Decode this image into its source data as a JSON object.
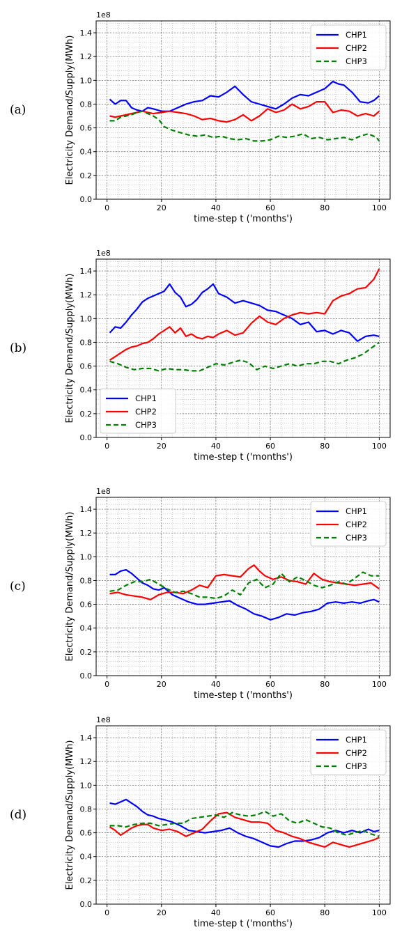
{
  "figure": {
    "panels": [
      {
        "label": "(a)",
        "chart_index": 0
      },
      {
        "label": "(b)",
        "chart_index": 1
      },
      {
        "label": "(c)",
        "chart_index": 2
      },
      {
        "label": "(d)",
        "chart_index": 3
      }
    ]
  },
  "colors": {
    "CHP1": "#0000ff",
    "CHP2": "#ff0000",
    "CHP3": "#008000"
  },
  "chart_data": [
    {
      "type": "line",
      "panel": "(a)",
      "xlabel": "time-step t ('months')",
      "ylabel": "Electricity Demand/Supply(MWh)",
      "offset_text": "1e8",
      "xlim": [
        -4,
        104
      ],
      "ylim": [
        0.0,
        1.5
      ],
      "xticks": [
        "0",
        "20",
        "40",
        "60",
        "80",
        "100"
      ],
      "yticks": [
        "0.0",
        "0.2",
        "0.4",
        "0.6",
        "0.8",
        "1.0",
        "1.2",
        "1.4"
      ],
      "grid": true,
      "minor_grid": true,
      "legend_position": "top-right",
      "series": [
        {
          "name": "CHP1",
          "style": "solid",
          "x": [
            1,
            3,
            5,
            7,
            9,
            11,
            13,
            15,
            17,
            20,
            23,
            26,
            29,
            32,
            35,
            38,
            41,
            44,
            47,
            50,
            53,
            56,
            59,
            62,
            65,
            68,
            71,
            74,
            77,
            80,
            83,
            85,
            87,
            90,
            93,
            96,
            98,
            100
          ],
          "y": [
            0.84,
            0.8,
            0.83,
            0.83,
            0.77,
            0.75,
            0.74,
            0.77,
            0.76,
            0.74,
            0.74,
            0.77,
            0.8,
            0.82,
            0.83,
            0.87,
            0.86,
            0.9,
            0.95,
            0.88,
            0.82,
            0.8,
            0.78,
            0.76,
            0.8,
            0.85,
            0.88,
            0.87,
            0.9,
            0.93,
            0.99,
            0.97,
            0.96,
            0.9,
            0.82,
            0.81,
            0.83,
            0.87
          ]
        },
        {
          "name": "CHP2",
          "style": "solid",
          "x": [
            1,
            3,
            5,
            7,
            9,
            11,
            13,
            15,
            17,
            20,
            23,
            26,
            29,
            32,
            35,
            38,
            41,
            44,
            47,
            50,
            53,
            56,
            59,
            62,
            65,
            68,
            71,
            74,
            77,
            80,
            83,
            86,
            89,
            92,
            95,
            98,
            100
          ],
          "y": [
            0.7,
            0.69,
            0.7,
            0.71,
            0.72,
            0.73,
            0.74,
            0.73,
            0.72,
            0.73,
            0.74,
            0.73,
            0.72,
            0.7,
            0.67,
            0.68,
            0.66,
            0.65,
            0.67,
            0.71,
            0.66,
            0.7,
            0.76,
            0.73,
            0.75,
            0.8,
            0.76,
            0.78,
            0.82,
            0.82,
            0.73,
            0.75,
            0.74,
            0.7,
            0.72,
            0.7,
            0.74
          ]
        },
        {
          "name": "CHP3",
          "style": "dashed",
          "x": [
            1,
            3,
            5,
            7,
            9,
            11,
            13,
            15,
            17,
            19,
            21,
            24,
            27,
            30,
            33,
            36,
            39,
            42,
            45,
            48,
            51,
            54,
            57,
            60,
            63,
            66,
            69,
            72,
            75,
            78,
            81,
            84,
            87,
            90,
            93,
            96,
            99,
            100
          ],
          "y": [
            0.66,
            0.66,
            0.69,
            0.7,
            0.71,
            0.73,
            0.74,
            0.72,
            0.7,
            0.67,
            0.61,
            0.58,
            0.56,
            0.54,
            0.53,
            0.54,
            0.52,
            0.53,
            0.51,
            0.5,
            0.51,
            0.49,
            0.49,
            0.5,
            0.53,
            0.52,
            0.53,
            0.55,
            0.51,
            0.52,
            0.5,
            0.51,
            0.52,
            0.5,
            0.53,
            0.55,
            0.52,
            0.49
          ]
        }
      ]
    },
    {
      "type": "line",
      "panel": "(b)",
      "xlabel": "time-step t ('months')",
      "ylabel": "Electricity Demand/Supply(MWh)",
      "offset_text": "1e8",
      "xlim": [
        -4,
        104
      ],
      "ylim": [
        0.0,
        1.5
      ],
      "xticks": [
        "0",
        "20",
        "40",
        "60",
        "80",
        "100"
      ],
      "yticks": [
        "0.0",
        "0.2",
        "0.4",
        "0.6",
        "0.8",
        "1.0",
        "1.2",
        "1.4"
      ],
      "grid": true,
      "minor_grid": true,
      "legend_position": "bottom-left",
      "series": [
        {
          "name": "CHP1",
          "style": "solid",
          "x": [
            1,
            3,
            5,
            7,
            9,
            11,
            13,
            15,
            17,
            19,
            21,
            23,
            25,
            27,
            29,
            31,
            33,
            35,
            37,
            39,
            41,
            44,
            47,
            50,
            53,
            56,
            59,
            62,
            65,
            68,
            71,
            74,
            77,
            80,
            83,
            86,
            89,
            92,
            95,
            98,
            100
          ],
          "y": [
            0.88,
            0.93,
            0.92,
            0.97,
            1.03,
            1.08,
            1.14,
            1.17,
            1.19,
            1.21,
            1.23,
            1.29,
            1.22,
            1.18,
            1.1,
            1.12,
            1.16,
            1.22,
            1.25,
            1.29,
            1.21,
            1.18,
            1.13,
            1.15,
            1.13,
            1.11,
            1.07,
            1.06,
            1.03,
            1.0,
            0.95,
            0.97,
            0.89,
            0.9,
            0.87,
            0.9,
            0.88,
            0.81,
            0.85,
            0.86,
            0.85
          ]
        },
        {
          "name": "CHP2",
          "style": "solid",
          "x": [
            1,
            3,
            5,
            7,
            9,
            11,
            13,
            15,
            17,
            19,
            21,
            23,
            25,
            27,
            29,
            31,
            33,
            35,
            37,
            39,
            41,
            44,
            47,
            50,
            53,
            56,
            59,
            62,
            65,
            68,
            71,
            74,
            77,
            80,
            83,
            86,
            89,
            92,
            95,
            98,
            100
          ],
          "y": [
            0.65,
            0.68,
            0.71,
            0.74,
            0.76,
            0.77,
            0.79,
            0.8,
            0.83,
            0.87,
            0.9,
            0.93,
            0.88,
            0.92,
            0.85,
            0.87,
            0.84,
            0.83,
            0.85,
            0.84,
            0.87,
            0.9,
            0.86,
            0.88,
            0.96,
            1.02,
            0.97,
            0.95,
            1.0,
            1.03,
            1.05,
            1.04,
            1.05,
            1.04,
            1.15,
            1.19,
            1.21,
            1.25,
            1.26,
            1.33,
            1.42
          ]
        },
        {
          "name": "CHP3",
          "style": "dashed",
          "x": [
            1,
            4,
            7,
            10,
            13,
            16,
            19,
            22,
            25,
            28,
            31,
            34,
            37,
            40,
            43,
            46,
            49,
            52,
            55,
            58,
            61,
            64,
            67,
            70,
            73,
            76,
            79,
            82,
            85,
            88,
            91,
            94,
            97,
            100
          ],
          "y": [
            0.64,
            0.62,
            0.59,
            0.57,
            0.58,
            0.58,
            0.56,
            0.58,
            0.57,
            0.57,
            0.56,
            0.56,
            0.59,
            0.62,
            0.61,
            0.63,
            0.65,
            0.63,
            0.57,
            0.6,
            0.58,
            0.6,
            0.62,
            0.6,
            0.62,
            0.62,
            0.64,
            0.64,
            0.62,
            0.65,
            0.67,
            0.7,
            0.75,
            0.8
          ]
        }
      ]
    },
    {
      "type": "line",
      "panel": "(c)",
      "xlabel": "time-step t ('months')",
      "ylabel": "Electricity Demand/Supply(MWh)",
      "offset_text": "1e8",
      "xlim": [
        -4,
        104
      ],
      "ylim": [
        0.0,
        1.5
      ],
      "xticks": [
        "0",
        "20",
        "40",
        "60",
        "80",
        "100"
      ],
      "yticks": [
        "0.0",
        "0.2",
        "0.4",
        "0.6",
        "0.8",
        "1.0",
        "1.2",
        "1.4"
      ],
      "grid": true,
      "minor_grid": true,
      "legend_position": "top-right",
      "series": [
        {
          "name": "CHP1",
          "style": "solid",
          "x": [
            1,
            3,
            5,
            7,
            9,
            11,
            13,
            15,
            17,
            19,
            21,
            24,
            27,
            30,
            33,
            36,
            39,
            42,
            45,
            48,
            51,
            54,
            57,
            60,
            63,
            66,
            69,
            72,
            75,
            78,
            81,
            84,
            87,
            90,
            93,
            96,
            98,
            100
          ],
          "y": [
            0.85,
            0.85,
            0.88,
            0.89,
            0.86,
            0.82,
            0.78,
            0.76,
            0.73,
            0.72,
            0.74,
            0.68,
            0.65,
            0.62,
            0.6,
            0.6,
            0.61,
            0.62,
            0.63,
            0.59,
            0.56,
            0.52,
            0.5,
            0.47,
            0.49,
            0.52,
            0.51,
            0.53,
            0.54,
            0.56,
            0.61,
            0.62,
            0.61,
            0.62,
            0.61,
            0.63,
            0.64,
            0.62
          ]
        },
        {
          "name": "CHP2",
          "style": "solid",
          "x": [
            1,
            4,
            7,
            10,
            13,
            16,
            19,
            22,
            25,
            28,
            31,
            34,
            37,
            40,
            43,
            46,
            49,
            52,
            54,
            56,
            58,
            61,
            64,
            67,
            70,
            73,
            76,
            79,
            82,
            85,
            88,
            91,
            94,
            97,
            100
          ],
          "y": [
            0.69,
            0.7,
            0.68,
            0.67,
            0.66,
            0.64,
            0.68,
            0.7,
            0.7,
            0.69,
            0.72,
            0.76,
            0.74,
            0.84,
            0.85,
            0.84,
            0.83,
            0.9,
            0.93,
            0.88,
            0.84,
            0.81,
            0.83,
            0.8,
            0.79,
            0.77,
            0.86,
            0.81,
            0.79,
            0.78,
            0.77,
            0.76,
            0.77,
            0.78,
            0.73
          ]
        },
        {
          "name": "CHP3",
          "style": "dashed",
          "x": [
            1,
            4,
            7,
            10,
            13,
            16,
            19,
            22,
            25,
            28,
            31,
            34,
            37,
            40,
            43,
            46,
            49,
            52,
            55,
            58,
            61,
            64,
            67,
            70,
            73,
            76,
            79,
            82,
            85,
            88,
            91,
            94,
            97,
            100
          ],
          "y": [
            0.71,
            0.72,
            0.76,
            0.79,
            0.79,
            0.81,
            0.77,
            0.73,
            0.7,
            0.71,
            0.69,
            0.66,
            0.66,
            0.65,
            0.67,
            0.72,
            0.68,
            0.78,
            0.81,
            0.74,
            0.77,
            0.86,
            0.79,
            0.83,
            0.8,
            0.76,
            0.74,
            0.76,
            0.79,
            0.77,
            0.82,
            0.87,
            0.84,
            0.84
          ]
        }
      ]
    },
    {
      "type": "line",
      "panel": "(d)",
      "xlabel": "time-step t ('months')",
      "ylabel": "Electricity Demand/Supply(MWh)",
      "offset_text": "1e8",
      "xlim": [
        -4,
        104
      ],
      "ylim": [
        0.0,
        1.5
      ],
      "xticks": [
        "0",
        "20",
        "40",
        "60",
        "80",
        "100"
      ],
      "yticks": [
        "0.0",
        "0.2",
        "0.4",
        "0.6",
        "0.8",
        "1.0",
        "1.2",
        "1.4"
      ],
      "grid": true,
      "minor_grid": true,
      "legend_position": "top-right",
      "series": [
        {
          "name": "CHP1",
          "style": "solid",
          "x": [
            1,
            3,
            5,
            7,
            9,
            11,
            13,
            15,
            17,
            19,
            21,
            24,
            27,
            30,
            33,
            36,
            39,
            42,
            45,
            48,
            51,
            54,
            57,
            60,
            63,
            66,
            69,
            72,
            75,
            78,
            81,
            84,
            87,
            90,
            93,
            96,
            98,
            100
          ],
          "y": [
            0.85,
            0.84,
            0.86,
            0.88,
            0.85,
            0.82,
            0.78,
            0.75,
            0.74,
            0.72,
            0.71,
            0.69,
            0.66,
            0.62,
            0.61,
            0.6,
            0.61,
            0.62,
            0.64,
            0.6,
            0.57,
            0.55,
            0.52,
            0.49,
            0.48,
            0.51,
            0.53,
            0.53,
            0.54,
            0.56,
            0.6,
            0.62,
            0.6,
            0.62,
            0.6,
            0.63,
            0.61,
            0.62
          ]
        },
        {
          "name": "CHP2",
          "style": "solid",
          "x": [
            1,
            3,
            5,
            7,
            9,
            11,
            13,
            15,
            17,
            20,
            23,
            26,
            29,
            32,
            35,
            38,
            41,
            44,
            47,
            50,
            53,
            56,
            59,
            62,
            65,
            68,
            71,
            74,
            77,
            80,
            83,
            86,
            89,
            92,
            95,
            98,
            100
          ],
          "y": [
            0.65,
            0.62,
            0.58,
            0.61,
            0.64,
            0.66,
            0.67,
            0.67,
            0.64,
            0.62,
            0.63,
            0.61,
            0.57,
            0.6,
            0.63,
            0.7,
            0.76,
            0.77,
            0.73,
            0.71,
            0.69,
            0.69,
            0.68,
            0.62,
            0.6,
            0.57,
            0.55,
            0.52,
            0.5,
            0.48,
            0.52,
            0.5,
            0.48,
            0.5,
            0.52,
            0.54,
            0.56
          ]
        },
        {
          "name": "CHP3",
          "style": "dashed",
          "x": [
            1,
            4,
            7,
            10,
            13,
            16,
            19,
            22,
            25,
            28,
            31,
            34,
            37,
            40,
            43,
            46,
            49,
            52,
            55,
            58,
            61,
            64,
            67,
            70,
            73,
            76,
            79,
            82,
            85,
            88,
            91,
            94,
            97,
            100
          ],
          "y": [
            0.66,
            0.66,
            0.65,
            0.67,
            0.68,
            0.68,
            0.66,
            0.67,
            0.68,
            0.68,
            0.72,
            0.73,
            0.74,
            0.75,
            0.73,
            0.77,
            0.75,
            0.74,
            0.75,
            0.78,
            0.74,
            0.76,
            0.7,
            0.68,
            0.71,
            0.68,
            0.65,
            0.64,
            0.6,
            0.58,
            0.6,
            0.62,
            0.59,
            0.57
          ]
        }
      ]
    }
  ]
}
